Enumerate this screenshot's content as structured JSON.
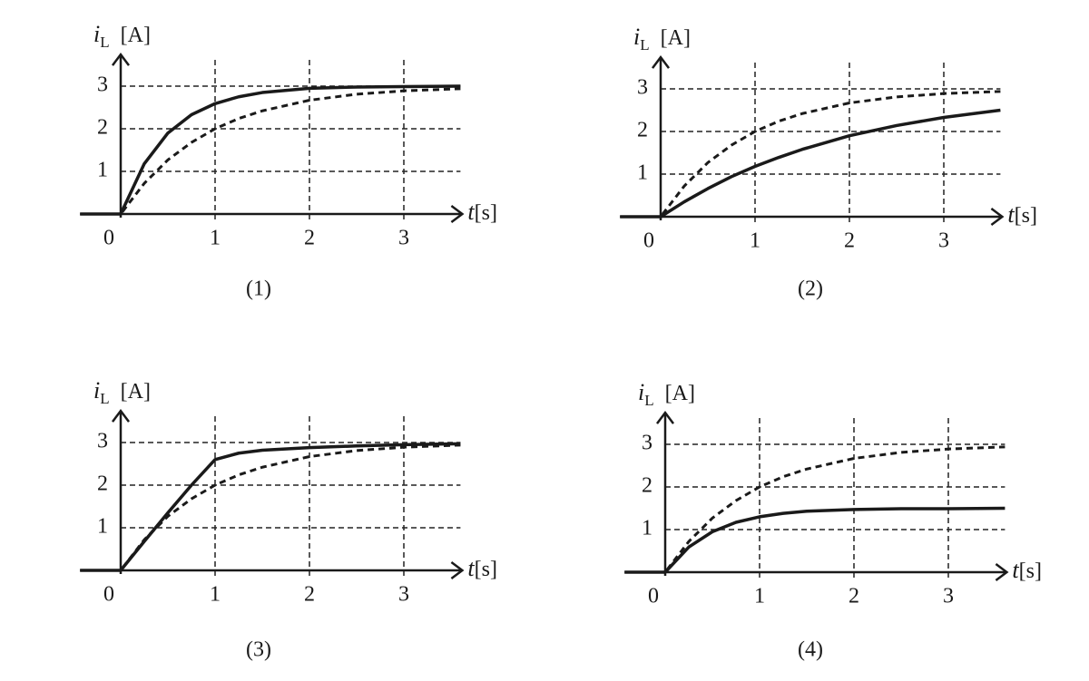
{
  "chart_data": [
    {
      "type": "line",
      "title": "(1)",
      "ylabel": {
        "symbol": "i",
        "subscript": "L",
        "unit": "[A]"
      },
      "xlabel": {
        "symbol": "t",
        "unit": "[s]"
      },
      "x": [
        -0.43,
        0,
        0.25,
        0.5,
        0.75,
        1,
        1.25,
        1.5,
        2,
        2.5,
        3,
        3.6
      ],
      "series": [
        {
          "color": "#1a1a1a",
          "dashed": false,
          "values": [
            0,
            0,
            1.18,
            1.9,
            2.33,
            2.59,
            2.75,
            2.85,
            2.95,
            2.98,
            2.99,
            3.0
          ]
        },
        {
          "color": "#1a1a1a",
          "dashed": true,
          "values": [
            0,
            0,
            0.72,
            1.27,
            1.68,
            2.0,
            2.24,
            2.42,
            2.67,
            2.81,
            2.89,
            2.94
          ]
        }
      ],
      "xlim": [
        -0.43,
        3.6
      ],
      "ylim": [
        0,
        3.7
      ],
      "xticks": [
        0,
        1,
        2,
        3
      ],
      "yticks": [
        1,
        2,
        3
      ],
      "grid": true
    },
    {
      "type": "line",
      "title": "(2)",
      "ylabel": {
        "symbol": "i",
        "subscript": "L",
        "unit": "[A]"
      },
      "xlabel": {
        "symbol": "t",
        "unit": "[s]"
      },
      "x": [
        -0.43,
        0,
        0.25,
        0.5,
        0.75,
        1,
        1.25,
        1.5,
        2,
        2.5,
        3,
        3.6
      ],
      "series": [
        {
          "color": "#1a1a1a",
          "dashed": false,
          "values": [
            0,
            0,
            0.35,
            0.66,
            0.94,
            1.18,
            1.39,
            1.58,
            1.9,
            2.14,
            2.33,
            2.5
          ]
        },
        {
          "color": "#1a1a1a",
          "dashed": true,
          "values": [
            0,
            0,
            0.72,
            1.27,
            1.68,
            2.0,
            2.24,
            2.42,
            2.67,
            2.81,
            2.89,
            2.94
          ]
        }
      ],
      "xlim": [
        -0.43,
        3.6
      ],
      "ylim": [
        0,
        3.7
      ],
      "xticks": [
        0,
        1,
        2,
        3
      ],
      "yticks": [
        1,
        2,
        3
      ],
      "grid": true
    },
    {
      "type": "line",
      "title": "(3)",
      "ylabel": {
        "symbol": "i",
        "subscript": "L",
        "unit": "[A]"
      },
      "xlabel": {
        "symbol": "t",
        "unit": "[s]"
      },
      "x": [
        -0.43,
        0,
        0.25,
        0.5,
        0.75,
        1,
        1.25,
        1.5,
        2,
        2.5,
        3,
        3.6
      ],
      "series": [
        {
          "color": "#1a1a1a",
          "dashed": false,
          "values": [
            0,
            0,
            0.68,
            1.35,
            2.0,
            2.6,
            2.75,
            2.82,
            2.88,
            2.92,
            2.95,
            2.97
          ]
        },
        {
          "color": "#1a1a1a",
          "dashed": true,
          "values": [
            0,
            0,
            0.72,
            1.27,
            1.68,
            2.0,
            2.24,
            2.42,
            2.67,
            2.81,
            2.89,
            2.94
          ]
        }
      ],
      "xlim": [
        -0.43,
        3.6
      ],
      "ylim": [
        0,
        3.7
      ],
      "xticks": [
        0,
        1,
        2,
        3
      ],
      "yticks": [
        1,
        2,
        3
      ],
      "grid": true
    },
    {
      "type": "line",
      "title": "(4)",
      "ylabel": {
        "symbol": "i",
        "subscript": "L",
        "unit": "[A]"
      },
      "xlabel": {
        "symbol": "t",
        "unit": "[s]"
      },
      "x": [
        -0.43,
        0,
        0.25,
        0.5,
        0.75,
        1,
        1.25,
        1.5,
        2,
        2.5,
        3,
        3.6
      ],
      "series": [
        {
          "color": "#1a1a1a",
          "dashed": false,
          "values": [
            0,
            0,
            0.59,
            0.95,
            1.17,
            1.3,
            1.38,
            1.43,
            1.47,
            1.49,
            1.49,
            1.5
          ]
        },
        {
          "color": "#1a1a1a",
          "dashed": true,
          "values": [
            0,
            0,
            0.72,
            1.27,
            1.68,
            2.0,
            2.24,
            2.42,
            2.67,
            2.81,
            2.89,
            2.94
          ]
        }
      ],
      "xlim": [
        -0.43,
        3.6
      ],
      "ylim": [
        0,
        3.7
      ],
      "xticks": [
        0,
        1,
        2,
        3
      ],
      "yticks": [
        1,
        2,
        3
      ],
      "grid": true
    }
  ]
}
